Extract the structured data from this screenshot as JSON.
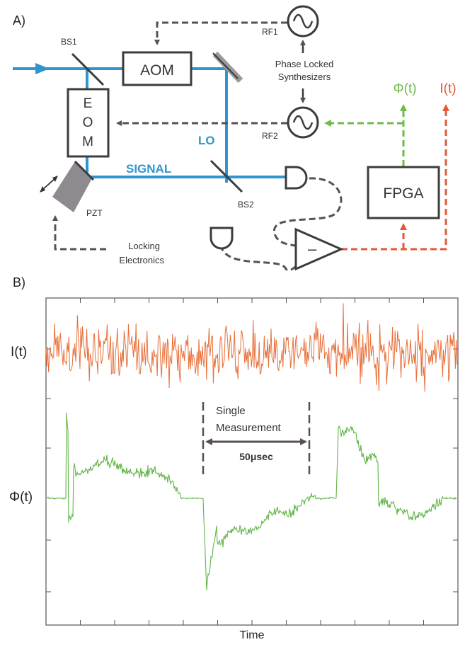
{
  "panels": {
    "a_label": "A)",
    "b_label": "B)"
  },
  "components": {
    "bs1": "BS1",
    "bs2": "BS2",
    "aom": "AOM",
    "eom_e": "E",
    "eom_o": "O",
    "eom_m": "M",
    "pzt": "PZT",
    "rf1": "RF1",
    "rf2": "RF2",
    "synth_line1": "Phase Locked",
    "synth_line2": "Synthesizers",
    "lo": "LO",
    "signal": "SIGNAL",
    "fpga": "FPGA",
    "diff_amp_symbol": "–",
    "phi_out": "Φ(t)",
    "i_out": "I(t)",
    "locking_line1": "Locking",
    "locking_line2": "Electronics"
  },
  "plot": {
    "i_label": "I(t)",
    "phi_label": "Φ(t)",
    "xlabel": "Time",
    "annotation_line1": "Single",
    "annotation_line2": "Measurement",
    "duration": "50μsec"
  },
  "colors": {
    "beam": "#2f95d0",
    "dashed": "#5a5050",
    "component": "#3c3c3c",
    "i_trace": "#e8703a",
    "phi_trace": "#62b548",
    "phi_output": "#6fbb4a",
    "i_output": "#e2593a",
    "mirror": "#9a9a9a"
  }
}
